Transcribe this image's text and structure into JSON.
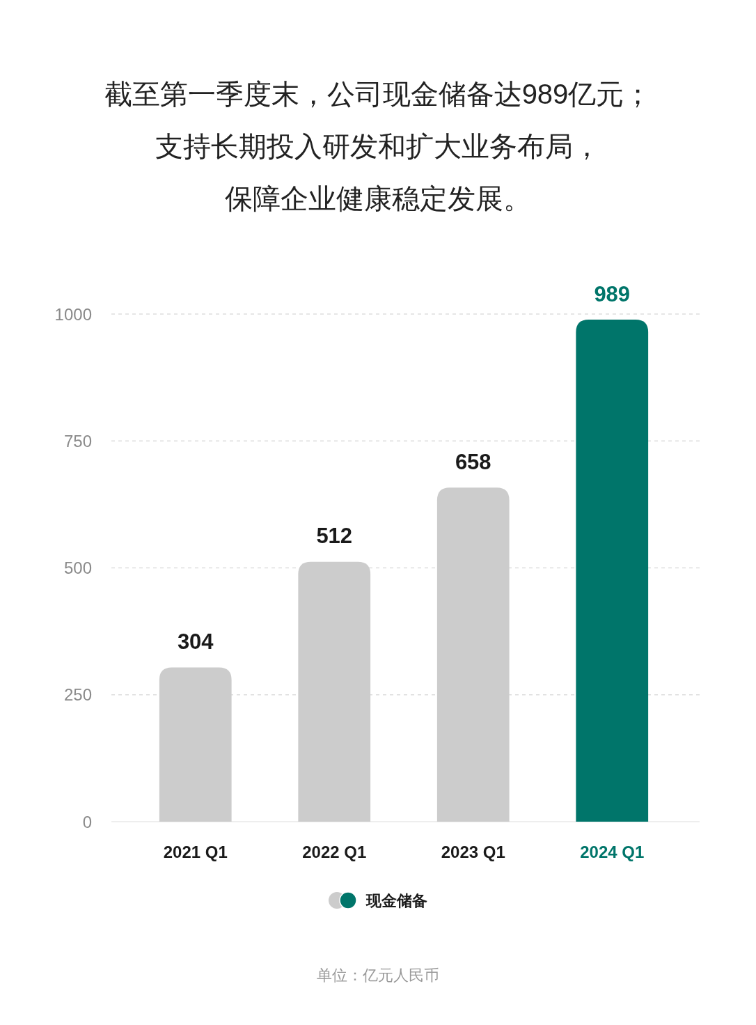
{
  "chart_data": {
    "type": "bar",
    "title": "截至第一季度末，公司现金储备达989亿元；支持长期投入研发和扩大业务布局，保障企业健康稳定发展。",
    "categories": [
      "2021 Q1",
      "2022 Q1",
      "2023 Q1",
      "2024 Q1"
    ],
    "series": [
      {
        "name": "现金储备",
        "values": [
          304,
          512,
          658,
          989
        ],
        "colors": [
          "#cccccc",
          "#cccccc",
          "#cccccc",
          "#00756a"
        ]
      }
    ],
    "ylim": [
      0,
      1000
    ],
    "yticks": [
      0,
      250,
      500,
      750,
      1000
    ],
    "grid": "y",
    "legend": "bottom",
    "data_labels": true,
    "annotations": [
      "单位：亿元人民币"
    ]
  }
}
